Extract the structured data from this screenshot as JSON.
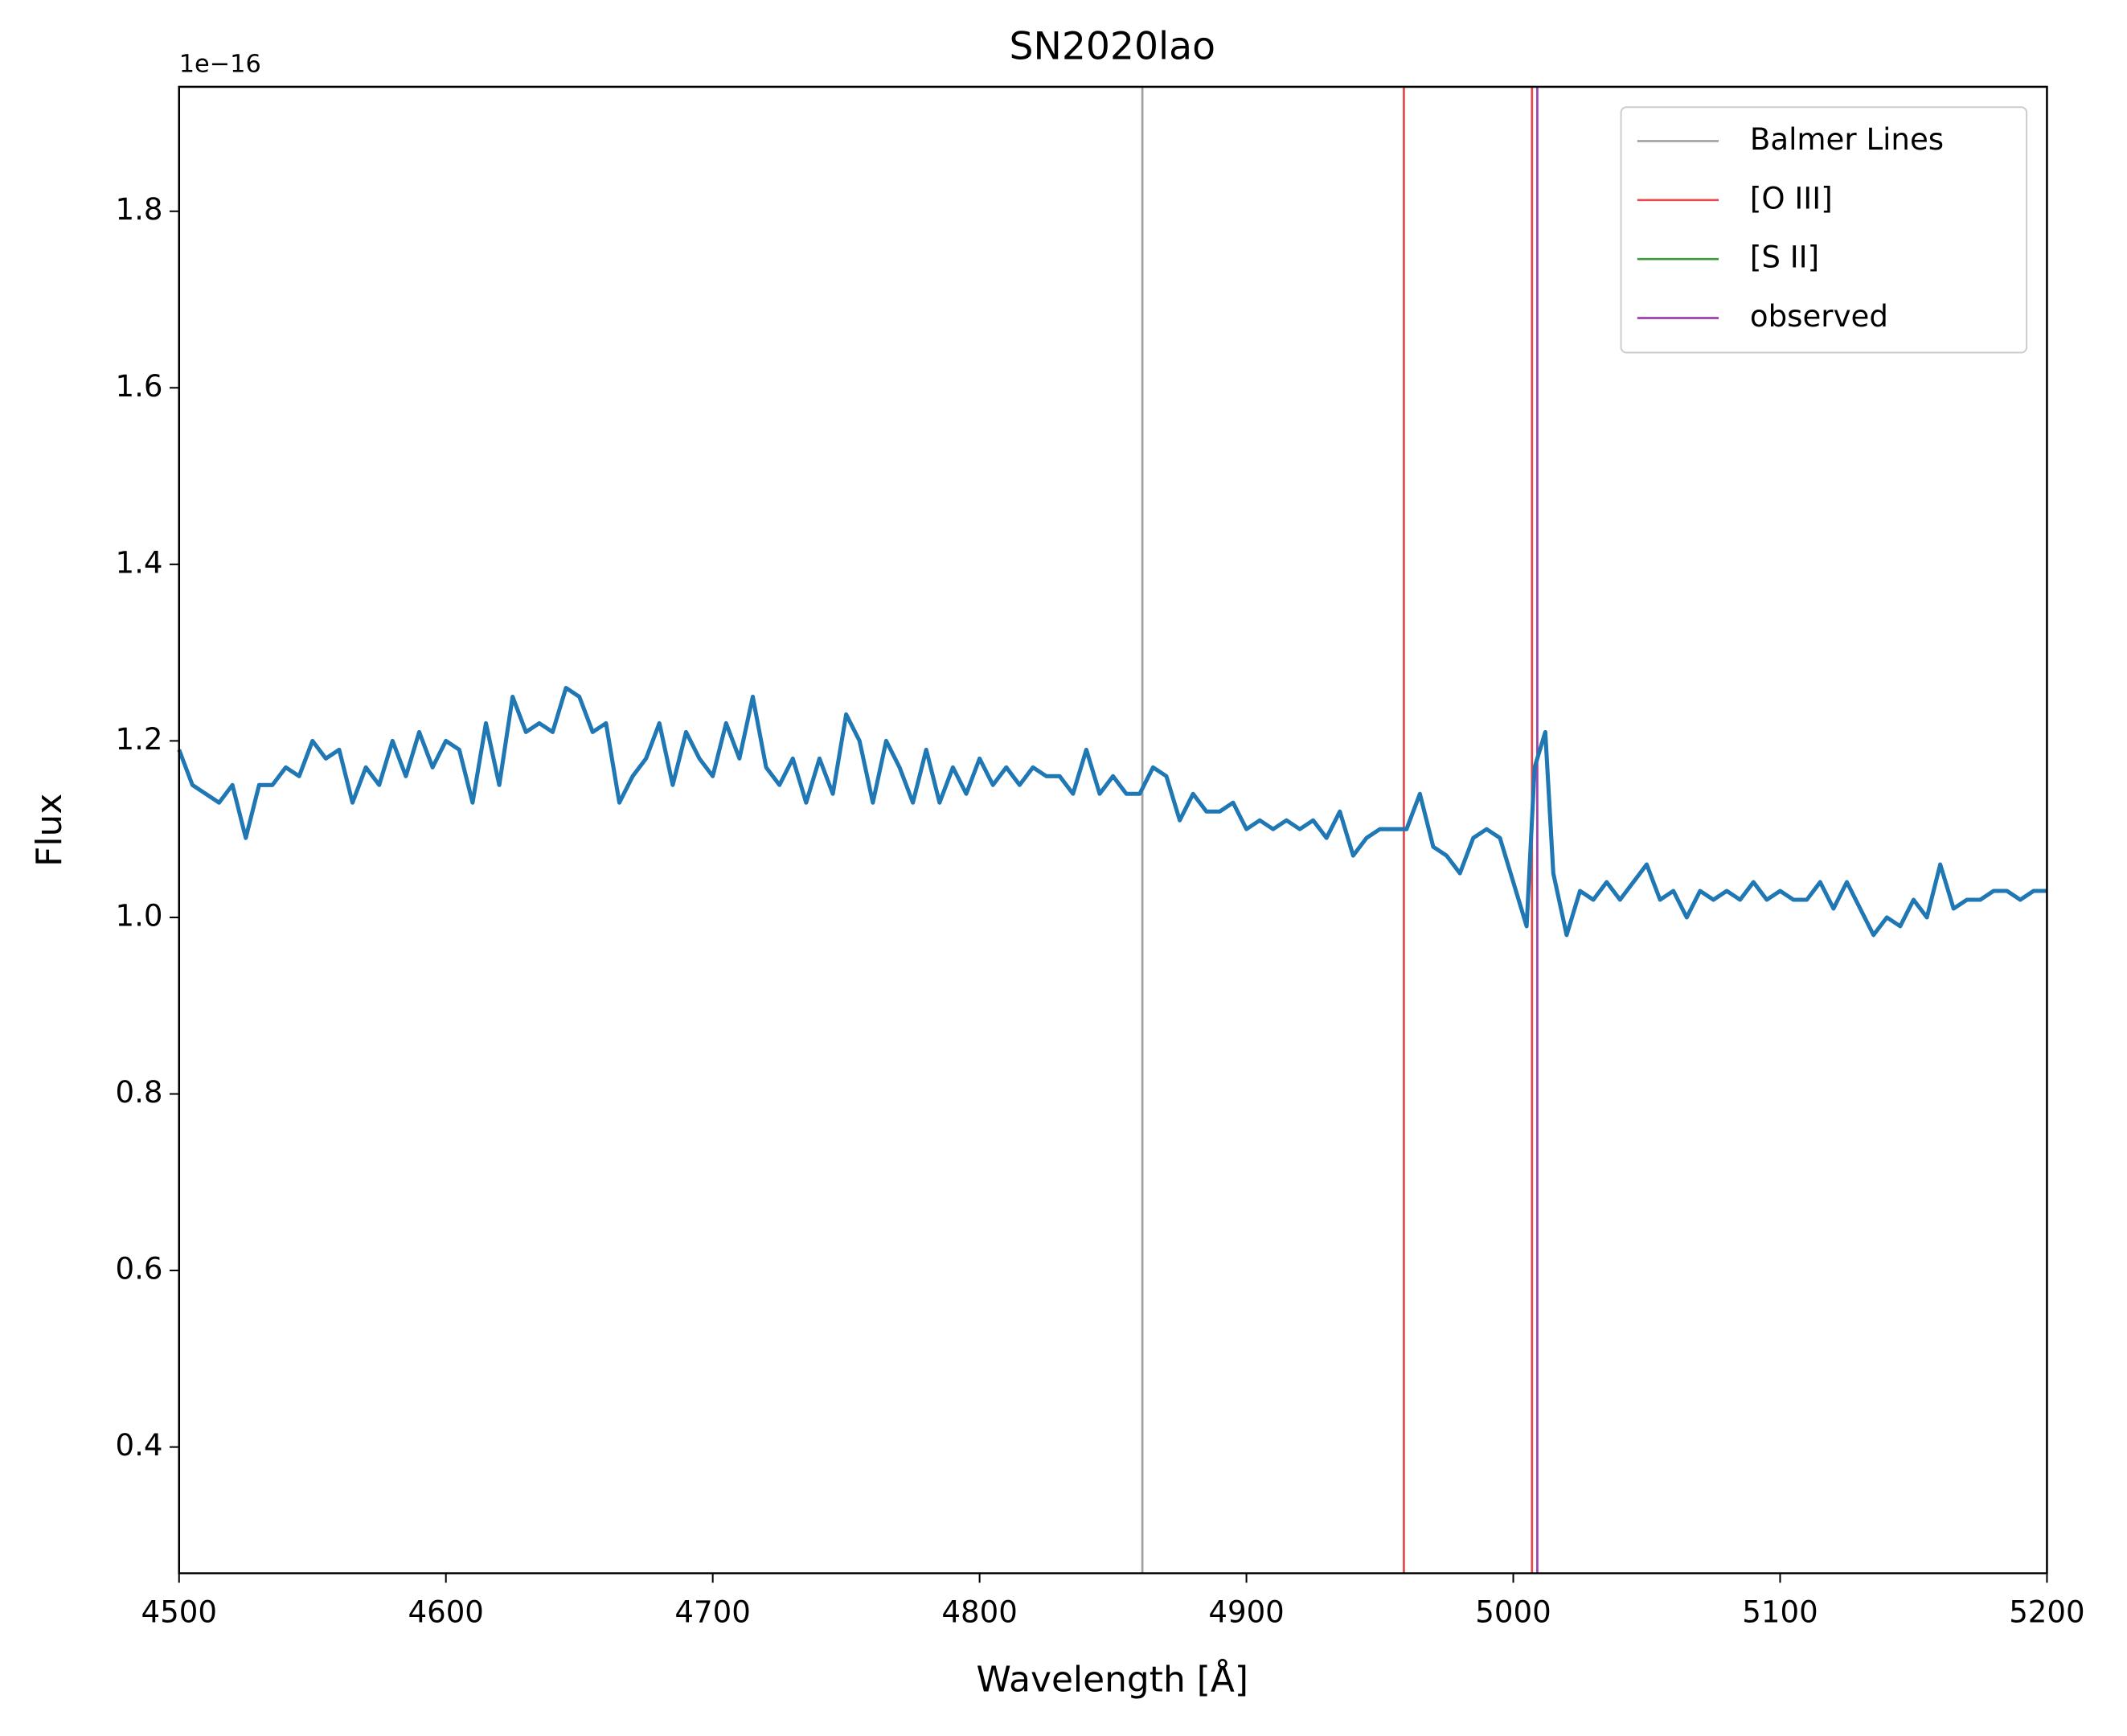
{
  "chart_data": {
    "type": "line",
    "title": "SN2020lao",
    "xlabel": "Wavelength [Å]",
    "ylabel": "Flux",
    "y_offset_label": "1e−16",
    "xlim": [
      4500,
      5200
    ],
    "xticks": [
      4500,
      4600,
      4700,
      4800,
      4900,
      5000,
      5100,
      5200
    ],
    "ylim": [
      0.257,
      1.941
    ],
    "yticks": [
      0.4,
      0.6,
      0.8,
      {
        "value": 1,
        "label": "1.0"
      },
      1.2,
      1.4,
      1.6,
      1.8
    ],
    "legend": "upper right",
    "series": [
      {
        "color": "#1f77b4",
        "x": [
          4500,
          4505,
          4510,
          4515,
          4520,
          4525,
          4530,
          4535,
          4540,
          4545,
          4550,
          4555,
          4560,
          4565,
          4570,
          4575,
          4580,
          4585,
          4590,
          4595,
          4600,
          4605,
          4610,
          4615,
          4620,
          4625,
          4630,
          4635,
          4640,
          4645,
          4650,
          4655,
          4660,
          4665,
          4670,
          4675,
          4680,
          4685,
          4690,
          4695,
          4700,
          4705,
          4710,
          4715,
          4720,
          4725,
          4730,
          4735,
          4740,
          4745,
          4750,
          4755,
          4760,
          4765,
          4770,
          4775,
          4780,
          4785,
          4790,
          4795,
          4800,
          4805,
          4810,
          4815,
          4820,
          4825,
          4830,
          4835,
          4840,
          4845,
          4850,
          4855,
          4860,
          4865,
          4870,
          4875,
          4880,
          4885,
          4890,
          4895,
          4900,
          4905,
          4910,
          4915,
          4920,
          4925,
          4930,
          4935,
          4940,
          4945,
          4950,
          4955,
          4960,
          4965,
          4970,
          4975,
          4980,
          4985,
          4990,
          4995,
          5000,
          5005,
          5008,
          5012,
          5015,
          5020,
          5025,
          5030,
          5035,
          5040,
          5045,
          5050,
          5055,
          5060,
          5065,
          5070,
          5075,
          5080,
          5085,
          5090,
          5095,
          5100,
          5105,
          5110,
          5115,
          5120,
          5125,
          5130,
          5135,
          5140,
          5145,
          5150,
          5155,
          5160,
          5165,
          5170,
          5175,
          5180,
          5185,
          5190,
          5195,
          5200
        ],
        "values": [
          1.19,
          1.15,
          1.14,
          1.13,
          1.15,
          1.09,
          1.15,
          1.15,
          1.17,
          1.16,
          1.2,
          1.18,
          1.19,
          1.13,
          1.17,
          1.15,
          1.2,
          1.16,
          1.21,
          1.17,
          1.2,
          1.19,
          1.13,
          1.22,
          1.15,
          1.25,
          1.21,
          1.22,
          1.21,
          1.26,
          1.25,
          1.21,
          1.22,
          1.13,
          1.16,
          1.18,
          1.22,
          1.15,
          1.21,
          1.18,
          1.16,
          1.22,
          1.18,
          1.25,
          1.17,
          1.15,
          1.18,
          1.13,
          1.18,
          1.14,
          1.23,
          1.2,
          1.13,
          1.2,
          1.17,
          1.13,
          1.19,
          1.13,
          1.17,
          1.14,
          1.18,
          1.15,
          1.17,
          1.15,
          1.17,
          1.16,
          1.16,
          1.14,
          1.19,
          1.14,
          1.16,
          1.14,
          1.14,
          1.17,
          1.16,
          1.11,
          1.14,
          1.12,
          1.12,
          1.13,
          1.1,
          1.11,
          1.1,
          1.11,
          1.1,
          1.11,
          1.09,
          1.12,
          1.07,
          1.09,
          1.1,
          1.1,
          1.1,
          1.14,
          1.08,
          1.07,
          1.05,
          1.09,
          1.1,
          1.09,
          1.04,
          0.99,
          1.17,
          1.21,
          1.05,
          0.98,
          1.03,
          1.02,
          1.04,
          1.02,
          1.04,
          1.06,
          1.02,
          1.03,
          1.0,
          1.03,
          1.02,
          1.03,
          1.02,
          1.04,
          1.02,
          1.03,
          1.02,
          1.02,
          1.04,
          1.01,
          1.04,
          1.01,
          0.98,
          1.0,
          0.99,
          1.02,
          1.0,
          1.06,
          1.01,
          1.02,
          1.02,
          1.03,
          1.03,
          1.02,
          1.03,
          1.03
        ]
      }
    ],
    "vlines": [
      {
        "name": "Balmer Lines",
        "color": "#a0a0a0",
        "x": [
          4861
        ]
      },
      {
        "name": "[O III]",
        "color": "#e8464a",
        "x": [
          4959,
          5007
        ]
      },
      {
        "name": "[S II]",
        "color": "#3a9a3a",
        "x": []
      },
      {
        "name": "observed",
        "color": "#9a3fae",
        "x": [
          5009
        ]
      }
    ]
  }
}
